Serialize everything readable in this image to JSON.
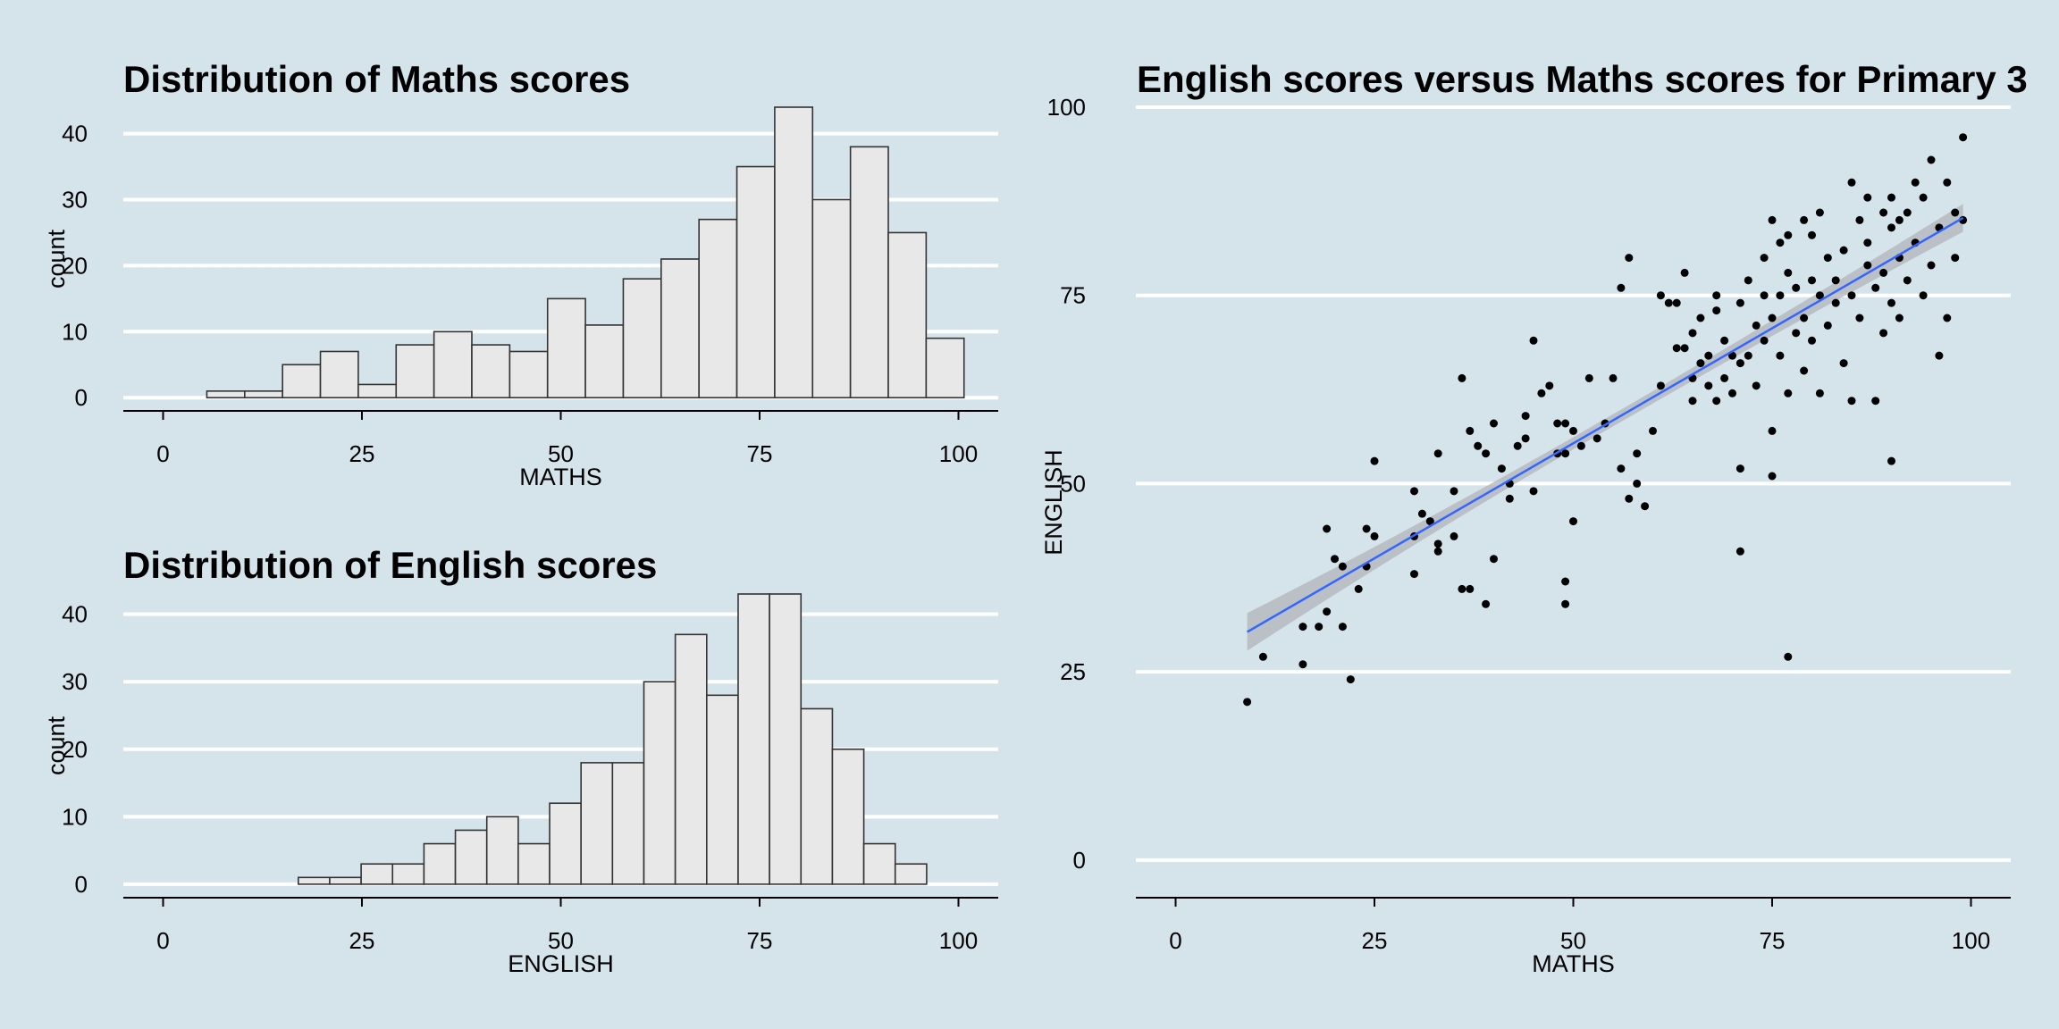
{
  "chart_data": [
    {
      "type": "bar",
      "title": "Distribution of Maths scores",
      "xlabel": "MATHS",
      "ylabel": "count",
      "xlim": [
        -5,
        105
      ],
      "ylim": [
        -2,
        44
      ],
      "xticks": [
        "0",
        "25",
        "50",
        "75",
        "100"
      ],
      "yticks": [
        "0",
        "10",
        "20",
        "30",
        "40"
      ],
      "grid": "horizontal-major",
      "bin_width": 4.76,
      "bin_start": 5.5,
      "values": [
        1,
        1,
        5,
        7,
        2,
        8,
        10,
        8,
        7,
        15,
        11,
        18,
        21,
        27,
        35,
        44,
        30,
        38,
        25,
        9
      ]
    },
    {
      "type": "bar",
      "title": "Distribution of English scores",
      "xlabel": "ENGLISH",
      "ylabel": "count",
      "xlim": [
        -5,
        105
      ],
      "ylim": [
        -2,
        43
      ],
      "xticks": [
        "0",
        "25",
        "50",
        "75",
        "100"
      ],
      "yticks": [
        "0",
        "10",
        "20",
        "30",
        "40"
      ],
      "grid": "horizontal-major",
      "bin_width": 3.95,
      "bin_start": 17,
      "values": [
        1,
        1,
        3,
        3,
        6,
        8,
        10,
        6,
        12,
        18,
        18,
        30,
        37,
        28,
        43,
        43,
        26,
        20,
        6,
        3
      ]
    },
    {
      "type": "scatter",
      "title": "English scores versus Maths scores for Primary 3",
      "xlabel": "MATHS",
      "ylabel": "ENGLISH",
      "xlim": [
        -5,
        105
      ],
      "ylim": [
        -5,
        100
      ],
      "xticks": [
        "0",
        "25",
        "50",
        "75",
        "100"
      ],
      "yticks": [
        "0",
        "25",
        "50",
        "75",
        "100"
      ],
      "grid": "horizontal-major",
      "smooth": {
        "method": "lm",
        "x": [
          9,
          99
        ],
        "y": [
          30.3,
          85.3
        ],
        "band_lower": [
          28,
          83.5
        ],
        "band_upper": [
          33,
          87.2
        ],
        "band_mid_half_width": 0.8
      },
      "points": [
        [
          9,
          21
        ],
        [
          11,
          27
        ],
        [
          16,
          31
        ],
        [
          16,
          26
        ],
        [
          18,
          31
        ],
        [
          19,
          33
        ],
        [
          19,
          44
        ],
        [
          20,
          40
        ],
        [
          21,
          39
        ],
        [
          21,
          31
        ],
        [
          22,
          24
        ],
        [
          23,
          36
        ],
        [
          24,
          44
        ],
        [
          24,
          39
        ],
        [
          25,
          53
        ],
        [
          25,
          43
        ],
        [
          30,
          49
        ],
        [
          30,
          43
        ],
        [
          30,
          38
        ],
        [
          31,
          46
        ],
        [
          32,
          45
        ],
        [
          33,
          54
        ],
        [
          33,
          42
        ],
        [
          33,
          41
        ],
        [
          35,
          49
        ],
        [
          35,
          43
        ],
        [
          36,
          36
        ],
        [
          37,
          36
        ],
        [
          36,
          64
        ],
        [
          37,
          57
        ],
        [
          38,
          55
        ],
        [
          39,
          54
        ],
        [
          40,
          40
        ],
        [
          39,
          34
        ],
        [
          40,
          58
        ],
        [
          41,
          52
        ],
        [
          42,
          48
        ],
        [
          42,
          50
        ],
        [
          43,
          55
        ],
        [
          44,
          59
        ],
        [
          44,
          56
        ],
        [
          45,
          49
        ],
        [
          45,
          69
        ],
        [
          46,
          62
        ],
        [
          47,
          63
        ],
        [
          48,
          54
        ],
        [
          48,
          58
        ],
        [
          49,
          58
        ],
        [
          49,
          54
        ],
        [
          49,
          34
        ],
        [
          49,
          37
        ],
        [
          50,
          45
        ],
        [
          50,
          57
        ],
        [
          51,
          55
        ],
        [
          52,
          64
        ],
        [
          53,
          56
        ],
        [
          54,
          58
        ],
        [
          55,
          64
        ],
        [
          56,
          76
        ],
        [
          56,
          52
        ],
        [
          57,
          80
        ],
        [
          57,
          48
        ],
        [
          58,
          50
        ],
        [
          58,
          54
        ],
        [
          59,
          47
        ],
        [
          60,
          57
        ],
        [
          61,
          63
        ],
        [
          61,
          75
        ],
        [
          62,
          74
        ],
        [
          63,
          74
        ],
        [
          63,
          68
        ],
        [
          64,
          68
        ],
        [
          64,
          78
        ],
        [
          65,
          70
        ],
        [
          65,
          61
        ],
        [
          65,
          64
        ],
        [
          66,
          66
        ],
        [
          66,
          72
        ],
        [
          67,
          67
        ],
        [
          67,
          63
        ],
        [
          68,
          61
        ],
        [
          68,
          73
        ],
        [
          68,
          75
        ],
        [
          69,
          69
        ],
        [
          69,
          64
        ],
        [
          70,
          67
        ],
        [
          70,
          62
        ],
        [
          71,
          74
        ],
        [
          71,
          66
        ],
        [
          71,
          52
        ],
        [
          71,
          41
        ],
        [
          72,
          77
        ],
        [
          72,
          67
        ],
        [
          73,
          71
        ],
        [
          73,
          63
        ],
        [
          74,
          80
        ],
        [
          74,
          75
        ],
        [
          74,
          69
        ],
        [
          75,
          85
        ],
        [
          75,
          72
        ],
        [
          75,
          57
        ],
        [
          75,
          51
        ],
        [
          76,
          82
        ],
        [
          76,
          75
        ],
        [
          76,
          67
        ],
        [
          77,
          83
        ],
        [
          77,
          78
        ],
        [
          77,
          62
        ],
        [
          77,
          27
        ],
        [
          78,
          76
        ],
        [
          78,
          70
        ],
        [
          79,
          85
        ],
        [
          79,
          72
        ],
        [
          79,
          65
        ],
        [
          80,
          83
        ],
        [
          80,
          77
        ],
        [
          80,
          69
        ],
        [
          81,
          86
        ],
        [
          81,
          75
        ],
        [
          81,
          62
        ],
        [
          82,
          80
        ],
        [
          82,
          71
        ],
        [
          83,
          77
        ],
        [
          83,
          74
        ],
        [
          84,
          81
        ],
        [
          84,
          66
        ],
        [
          85,
          90
        ],
        [
          85,
          75
        ],
        [
          85,
          61
        ],
        [
          86,
          85
        ],
        [
          86,
          72
        ],
        [
          87,
          88
        ],
        [
          87,
          82
        ],
        [
          87,
          79
        ],
        [
          88,
          76
        ],
        [
          88,
          61
        ],
        [
          89,
          86
        ],
        [
          89,
          78
        ],
        [
          89,
          70
        ],
        [
          90,
          88
        ],
        [
          90,
          84
        ],
        [
          90,
          74
        ],
        [
          90,
          53
        ],
        [
          91,
          85
        ],
        [
          91,
          80
        ],
        [
          91,
          72
        ],
        [
          92,
          86
        ],
        [
          92,
          77
        ],
        [
          93,
          90
        ],
        [
          93,
          82
        ],
        [
          94,
          75
        ],
        [
          94,
          88
        ],
        [
          95,
          93
        ],
        [
          95,
          79
        ],
        [
          96,
          67
        ],
        [
          96,
          84
        ],
        [
          97,
          90
        ],
        [
          97,
          72
        ],
        [
          98,
          86
        ],
        [
          98,
          80
        ],
        [
          99,
          96
        ],
        [
          99,
          85
        ]
      ]
    }
  ]
}
